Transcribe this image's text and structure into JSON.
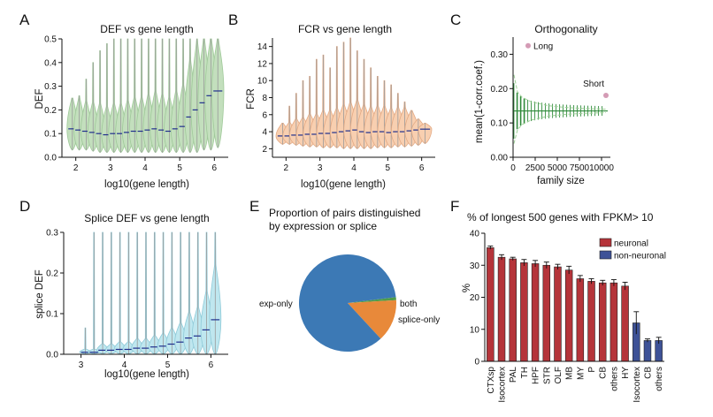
{
  "panels": {
    "A": {
      "letter": "A",
      "title": "DEF vs gene length"
    },
    "B": {
      "letter": "B",
      "title": "FCR vs gene length"
    },
    "C": {
      "letter": "C",
      "title": "Orthogonality"
    },
    "D": {
      "letter": "D",
      "title": "Splice DEF vs gene length"
    },
    "E": {
      "letter": "E",
      "title_line1": "Proportion of pairs distinguished",
      "title_line2": "by expression or splice"
    },
    "F": {
      "letter": "F",
      "title": "% of longest 500 genes with FPKM> 10"
    }
  },
  "colors": {
    "violin_green": "#c3dfbd",
    "violin_green_edge": "#9fc999",
    "violin_orange": "#f8cfb0",
    "violin_orange_edge": "#e3aa85",
    "violin_cyan": "#bfe7ef",
    "violin_cyan_edge": "#8fcad8",
    "median_line": "#1f2f8c",
    "whisker_grey": "#9a9a9a",
    "pie_blue": "#3c79b5",
    "pie_orange": "#e8893a",
    "pie_green": "#4f9c4a",
    "bar_red": "#b5343a",
    "bar_blue": "#3e5297",
    "ortho_green": "#2f8a3a",
    "ortho_dash": "#9dcf96",
    "point_pink": "#d49bb5"
  },
  "chart_data": [
    {
      "id": "A",
      "type": "violin",
      "title": "DEF vs gene length",
      "xlabel": "log10(gene length)",
      "ylabel": "DEF",
      "xlim": [
        1.6,
        6.4
      ],
      "ylim": [
        0,
        0.5
      ],
      "xticks": [
        2,
        3,
        4,
        5,
        6
      ],
      "yticks": [
        0,
        0.1,
        0.2,
        0.3,
        0.4,
        0.5
      ],
      "ytick_labels": [
        "0.0",
        "0.1",
        "0.2",
        "0.3",
        "0.4",
        "0.5"
      ],
      "positions": [
        1.9,
        2.1,
        2.3,
        2.5,
        2.7,
        2.9,
        3.1,
        3.3,
        3.5,
        3.7,
        3.9,
        4.1,
        4.3,
        4.5,
        4.7,
        4.9,
        5.1,
        5.3,
        5.5,
        5.7,
        5.9,
        6.1
      ],
      "medians": [
        0.12,
        0.115,
        0.11,
        0.105,
        0.1,
        0.095,
        0.1,
        0.1,
        0.105,
        0.11,
        0.11,
        0.115,
        0.12,
        0.115,
        0.11,
        0.12,
        0.13,
        0.17,
        0.2,
        0.23,
        0.26,
        0.28
      ],
      "mins": [
        0.03,
        0.03,
        0.03,
        0.025,
        0.02,
        0.02,
        0.02,
        0.02,
        0.02,
        0.02,
        0.02,
        0.02,
        0.02,
        0.02,
        0.02,
        0.02,
        0.02,
        0.02,
        0.02,
        0.03,
        0.03,
        0.04
      ],
      "maxs": [
        0.25,
        0.26,
        0.33,
        0.4,
        0.45,
        0.48,
        0.5,
        0.5,
        0.5,
        0.5,
        0.5,
        0.5,
        0.5,
        0.5,
        0.5,
        0.5,
        0.5,
        0.5,
        0.5,
        0.5,
        0.5,
        0.5
      ],
      "widths": [
        0.8,
        0.8,
        0.8,
        0.8,
        0.8,
        0.8,
        0.8,
        0.8,
        0.8,
        0.8,
        0.8,
        0.8,
        0.8,
        0.8,
        0.8,
        0.8,
        0.8,
        0.8,
        0.9,
        0.9,
        0.9,
        0.9
      ],
      "grid": false
    },
    {
      "id": "B",
      "type": "violin",
      "title": "FCR vs gene length",
      "xlabel": "log10(gene length)",
      "ylabel": "FCR",
      "xlim": [
        1.6,
        6.4
      ],
      "ylim": [
        1,
        15
      ],
      "xticks": [
        2,
        3,
        4,
        5,
        6
      ],
      "yticks": [
        2,
        4,
        6,
        8,
        10,
        12,
        14
      ],
      "positions": [
        1.9,
        2.1,
        2.3,
        2.5,
        2.7,
        2.9,
        3.1,
        3.3,
        3.5,
        3.7,
        3.9,
        4.1,
        4.3,
        4.5,
        4.7,
        4.9,
        5.1,
        5.3,
        5.5,
        5.7,
        5.9,
        6.1
      ],
      "medians": [
        3.5,
        3.5,
        3.6,
        3.6,
        3.7,
        3.7,
        3.8,
        3.8,
        3.9,
        4.0,
        4.1,
        4.2,
        4.0,
        3.9,
        4.0,
        4.0,
        3.9,
        4.0,
        4.0,
        4.1,
        4.2,
        4.3
      ],
      "mins": [
        2.5,
        2.5,
        2.4,
        2.3,
        2.2,
        2.2,
        2.1,
        2.1,
        2.1,
        2.0,
        2.0,
        2.0,
        2.0,
        2.0,
        2.1,
        2.1,
        2.1,
        2.2,
        2.2,
        2.3,
        2.4,
        2.6
      ],
      "maxs": [
        5.0,
        7.0,
        8.5,
        10.0,
        10.5,
        12.5,
        13.0,
        11.5,
        14.0,
        14.5,
        15.0,
        13.5,
        12.5,
        11.5,
        10.5,
        10.0,
        9.5,
        8.5,
        7.5,
        6.5,
        5.5,
        5.0
      ],
      "grid": false
    },
    {
      "id": "C",
      "type": "scatter",
      "title": "Orthogonality",
      "xlabel": "family size",
      "ylabel": "mean(1-corr.coef.)",
      "xlim": [
        0,
        11000
      ],
      "ylim": [
        0,
        0.35
      ],
      "xticks": [
        0,
        2500,
        5000,
        7500,
        10000
      ],
      "yticks": [
        0,
        0.1,
        0.2,
        0.3
      ],
      "ytick_labels": [
        "0.00",
        "0.10",
        "0.20",
        "0.30"
      ],
      "mean_value": 0.135,
      "band_upper": [
        [
          100,
          0.24
        ],
        [
          500,
          0.19
        ],
        [
          1000,
          0.175
        ],
        [
          2000,
          0.162
        ],
        [
          4000,
          0.15
        ],
        [
          6000,
          0.145
        ],
        [
          8000,
          0.142
        ],
        [
          10500,
          0.14
        ]
      ],
      "band_lower": [
        [
          100,
          0.04
        ],
        [
          500,
          0.08
        ],
        [
          1000,
          0.095
        ],
        [
          2000,
          0.108
        ],
        [
          4000,
          0.12
        ],
        [
          6000,
          0.125
        ],
        [
          8000,
          0.128
        ],
        [
          10500,
          0.13
        ]
      ],
      "points": [
        {
          "label": "Long",
          "x": 1700,
          "y": 0.325
        },
        {
          "label": "Short",
          "x": 10500,
          "y": 0.18
        }
      ],
      "grid": false
    },
    {
      "id": "D",
      "type": "violin",
      "title": "Splice DEF vs gene length",
      "xlabel": "log10(gene length)",
      "ylabel": "splice DEF",
      "xlim": [
        2.6,
        6.4
      ],
      "ylim": [
        0,
        0.3
      ],
      "xticks": [
        3,
        4,
        5,
        6
      ],
      "yticks": [
        0,
        0.1,
        0.2,
        0.3
      ],
      "ytick_labels": [
        "0.0",
        "0.1",
        "0.2",
        "0.3"
      ],
      "positions": [
        3.1,
        3.3,
        3.5,
        3.7,
        3.9,
        4.1,
        4.3,
        4.5,
        4.7,
        4.9,
        5.1,
        5.3,
        5.5,
        5.7,
        5.9,
        6.1
      ],
      "medians": [
        0.005,
        0.005,
        0.01,
        0.01,
        0.012,
        0.012,
        0.015,
        0.015,
        0.018,
        0.02,
        0.025,
        0.03,
        0.04,
        0.045,
        0.06,
        0.085
      ],
      "mins": [
        0,
        0,
        0,
        0,
        0,
        0,
        0,
        0,
        0,
        0,
        0,
        0,
        0,
        0,
        0,
        0
      ],
      "maxs": [
        0.065,
        0.3,
        0.3,
        0.3,
        0.3,
        0.3,
        0.3,
        0.3,
        0.3,
        0.3,
        0.3,
        0.3,
        0.3,
        0.3,
        0.3,
        0.3
      ],
      "grid": false
    },
    {
      "id": "E",
      "type": "pie",
      "title": "Proportion of pairs distinguished by expression or splice",
      "slices": [
        {
          "label": "exp-only",
          "value": 0.905,
          "color": "#3c79b5"
        },
        {
          "label": "both",
          "value": 0.01,
          "color": "#4f9c4a"
        },
        {
          "label": "splice-only",
          "value": 0.085,
          "color": "#e8893a"
        }
      ]
    },
    {
      "id": "F",
      "type": "bar",
      "title": "% of longest 500 genes with FPKM> 10",
      "ylabel": "%",
      "ylim": [
        0,
        40
      ],
      "yticks": [
        0,
        10,
        20,
        30,
        40
      ],
      "categories": [
        "CTXsp",
        "Isocortex",
        "PAL",
        "TH",
        "HPF",
        "STR",
        "OLF",
        "MB",
        "MY",
        "P",
        "CB",
        "others",
        "HY",
        "Isocortex",
        "CB",
        "others"
      ],
      "values": [
        35.5,
        32.5,
        32.0,
        30.8,
        30.5,
        30.0,
        29.5,
        28.5,
        25.8,
        25.0,
        24.5,
        24.5,
        23.5,
        12.0,
        6.5,
        6.5
      ],
      "errors": [
        0.5,
        0.8,
        0.5,
        1.0,
        1.0,
        1.0,
        0.8,
        1.2,
        1.0,
        0.8,
        0.8,
        1.0,
        1.2,
        3.5,
        0.5,
        1.0
      ],
      "groups": [
        "neuronal",
        "neuronal",
        "neuronal",
        "neuronal",
        "neuronal",
        "neuronal",
        "neuronal",
        "neuronal",
        "neuronal",
        "neuronal",
        "neuronal",
        "neuronal",
        "neuronal",
        "non-neuronal",
        "non-neuronal",
        "non-neuronal"
      ],
      "legend": [
        {
          "label": "neuronal",
          "color": "#b5343a"
        },
        {
          "label": "non-neuronal",
          "color": "#3e5297"
        }
      ],
      "legend_position": "top-right",
      "grid": false
    }
  ]
}
